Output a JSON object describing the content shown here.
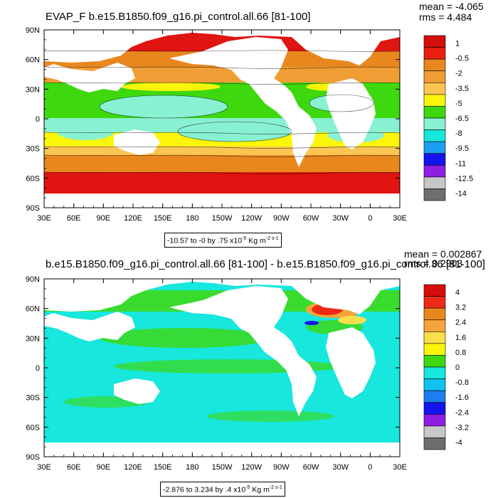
{
  "panels": [
    {
      "title": "EVAP_F b.e15.B1850.f09_g16.pi_control.all.66 [81-100]",
      "stats": {
        "mean": "mean = -4.065",
        "rms": "rms = 4.484"
      },
      "range": {
        "prefix": "-10.57 to -0 by .75 x10",
        "exp": "-5",
        "unit": " Kg m",
        "unit_exp": "-2 s-1"
      },
      "lat_labels": [
        "90N",
        "60N",
        "30N",
        "0",
        "30S",
        "60S",
        "90S"
      ],
      "lon_labels": [
        "30E",
        "60E",
        "90E",
        "120E",
        "150E",
        "180",
        "150W",
        "120W",
        "90W",
        "60W",
        "30W",
        "0",
        "30E"
      ],
      "colorbar": {
        "labels": [
          "1",
          "-0.5",
          "-2",
          "-3.5",
          "-5",
          "-6.5",
          "-8",
          "-9.5",
          "-11",
          "-12.5",
          "-14"
        ],
        "colors": [
          "#d40f0c",
          "#ea1d10",
          "#e9871f",
          "#f09d35",
          "#fbc552",
          "#fbf50a",
          "#3ed80f",
          "#88f1d1",
          "#17e7dd",
          "#1c9ff0",
          "#1414ee",
          "#8e1ee3",
          "#c7c7c7",
          "#6e6e6e"
        ]
      }
    },
    {
      "title": "b.e15.B1850.f09_g16.pi_control.all.66 [81-100] - b.e15.B1850.f09_g16.pi_control.36 [81-100]",
      "stats": {
        "mean": "mean = 0.002867",
        "rms": "rms = 0.2903"
      },
      "range": {
        "prefix": "-2.876 to 3.234 by .4 x10",
        "exp": "-5",
        "unit": " Kg m",
        "unit_exp": "-2 s-1"
      },
      "lat_labels": [
        "90N",
        "60N",
        "30N",
        "0",
        "30S",
        "60S",
        "90S"
      ],
      "lon_labels": [
        "30E",
        "60E",
        "90E",
        "120E",
        "150E",
        "180",
        "150W",
        "120W",
        "90W",
        "60W",
        "30W",
        "0",
        "30E"
      ],
      "colorbar": {
        "labels": [
          "4",
          "3.2",
          "2.4",
          "1.6",
          "0.8",
          "0",
          "-0.8",
          "-1.6",
          "-2.4",
          "-3.2",
          "-4"
        ],
        "colors": [
          "#d80c0c",
          "#ee2a16",
          "#e9871f",
          "#f6a43b",
          "#f9e04a",
          "#fbf50a",
          "#3ed80f",
          "#17e7dd",
          "#0fc3ee",
          "#1c7ff0",
          "#1414ee",
          "#8e1ee3",
          "#c7c7c7",
          "#6e6e6e"
        ]
      }
    }
  ]
}
